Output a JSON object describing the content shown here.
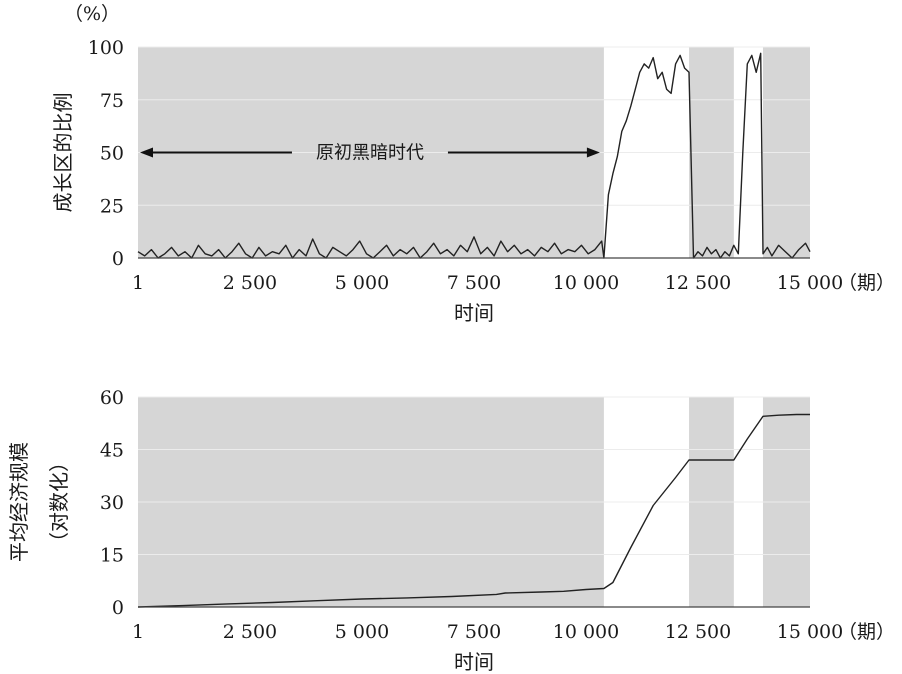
{
  "chart_data": [
    {
      "type": "line",
      "ylabel": "成长区的比例",
      "yunit": "（%）",
      "xlabel": "时间",
      "xunit": "（期）",
      "xlim": [
        1,
        15000
      ],
      "ylim": [
        0,
        100
      ],
      "xticks": [
        1,
        2500,
        5000,
        7500,
        10000,
        12500,
        15000
      ],
      "xtick_labels": [
        "1",
        "2 500",
        "5 000",
        "7 500",
        "10 000",
        "12 500",
        "15 000"
      ],
      "yticks": [
        0,
        25,
        50,
        75,
        100
      ],
      "ytick_labels": [
        "0",
        "25",
        "50",
        "75",
        "100"
      ],
      "grid": true,
      "shaded_periods": [
        [
          1,
          10400
        ],
        [
          12300,
          13300
        ],
        [
          13950,
          15000
        ]
      ],
      "annotation": {
        "text": "原初黑暗时代",
        "arrow_from": 1,
        "arrow_to": 10400,
        "y": 50
      },
      "colors": {
        "shade": "#d6d6d6",
        "line": "#222222",
        "noise_line": "#555555",
        "grid": "#ececec"
      },
      "series": [
        {
          "x": [
            1,
            150,
            300,
            450,
            600,
            750,
            900,
            1050,
            1200,
            1350,
            1500,
            1650,
            1800,
            1950,
            2100,
            2250,
            2400,
            2550,
            2700,
            2850,
            3000,
            3150,
            3300,
            3450,
            3600,
            3750,
            3900,
            4050,
            4200,
            4350,
            4500,
            4650,
            4800,
            4950,
            5100,
            5250,
            5400,
            5550,
            5700,
            5850,
            6000,
            6150,
            6300,
            6450,
            6600,
            6750,
            6900,
            7050,
            7200,
            7350,
            7500,
            7650,
            7800,
            7950,
            8100,
            8250,
            8400,
            8550,
            8700,
            8850,
            9000,
            9150,
            9300,
            9450,
            9600,
            9750,
            9900,
            10050,
            10200,
            10350,
            10400,
            10500,
            10600,
            10700,
            10800,
            10900,
            11000,
            11100,
            11200,
            11300,
            11400,
            11500,
            11600,
            11700,
            11800,
            11900,
            12000,
            12100,
            12200,
            12300,
            12400,
            12500,
            12600,
            12700,
            12800,
            12900,
            13000,
            13100,
            13200,
            13300,
            13400,
            13500,
            13600,
            13700,
            13800,
            13900,
            13950,
            14050,
            14150,
            14300,
            14450,
            14600,
            14750,
            14900,
            15000
          ],
          "y": [
            3,
            1,
            4,
            0,
            2,
            5,
            1,
            3,
            0,
            6,
            2,
            1,
            4,
            0,
            3,
            7,
            2,
            0,
            5,
            1,
            3,
            2,
            6,
            0,
            4,
            1,
            9,
            2,
            0,
            5,
            3,
            1,
            4,
            8,
            2,
            0,
            3,
            6,
            1,
            4,
            2,
            5,
            0,
            3,
            7,
            2,
            4,
            1,
            6,
            3,
            10,
            2,
            5,
            1,
            8,
            3,
            6,
            2,
            4,
            1,
            5,
            3,
            7,
            2,
            4,
            3,
            6,
            2,
            4,
            8,
            0,
            30,
            40,
            48,
            60,
            65,
            72,
            80,
            88,
            92,
            90,
            95,
            85,
            88,
            80,
            78,
            92,
            96,
            90,
            88,
            0,
            3,
            1,
            5,
            2,
            4,
            0,
            3,
            1,
            6,
            2,
            50,
            92,
            96,
            88,
            97,
            2,
            5,
            1,
            6,
            3,
            0,
            4,
            7,
            3
          ]
        }
      ]
    },
    {
      "type": "line",
      "ylabel": "平均经济规模",
      "ylabel2": "（对数化）",
      "xlabel": "时间",
      "xunit": "（期）",
      "xlim": [
        1,
        15000
      ],
      "ylim": [
        0,
        60
      ],
      "xticks": [
        1,
        2500,
        5000,
        7500,
        10000,
        12500,
        15000
      ],
      "xtick_labels": [
        "1",
        "2 500",
        "5 000",
        "7 500",
        "10 000",
        "12 500",
        "15 000"
      ],
      "yticks": [
        0,
        15,
        30,
        45,
        60
      ],
      "ytick_labels": [
        "0",
        "15",
        "30",
        "45",
        "60"
      ],
      "grid": true,
      "shaded_periods": [
        [
          1,
          10400
        ],
        [
          12300,
          13300
        ],
        [
          13950,
          15000
        ]
      ],
      "colors": {
        "shade": "#d6d6d6",
        "line": "#222222",
        "grid": "#ececec"
      },
      "series": [
        {
          "x": [
            1,
            1000,
            2000,
            3000,
            4000,
            5000,
            6000,
            7000,
            8000,
            8200,
            9000,
            9500,
            10000,
            10400,
            10600,
            11000,
            11500,
            12000,
            12300,
            12500,
            13000,
            13300,
            13600,
            13950,
            14300,
            14700,
            15000
          ],
          "y": [
            0,
            0.4,
            0.9,
            1.3,
            1.8,
            2.3,
            2.6,
            3.0,
            3.6,
            4.0,
            4.3,
            4.5,
            5.0,
            5.3,
            7.0,
            17,
            29,
            37,
            42,
            42,
            42,
            42,
            48,
            54.5,
            54.8,
            55,
            55
          ]
        }
      ]
    }
  ]
}
